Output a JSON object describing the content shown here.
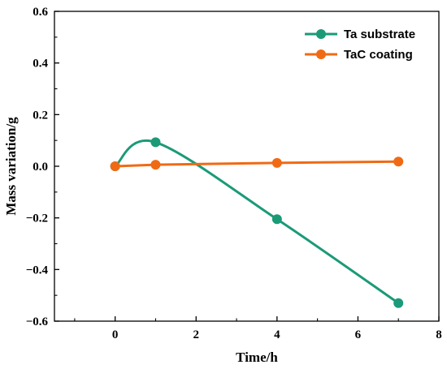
{
  "chart_data": {
    "type": "line",
    "xlabel": "Time/h",
    "ylabel": "Mass variation/g",
    "xlim": [
      -1.5,
      8
    ],
    "ylim": [
      -0.6,
      0.6
    ],
    "xticks": [
      0,
      2,
      4,
      6,
      8
    ],
    "xtick_labels": [
      "0",
      "2",
      "4",
      "6",
      "8"
    ],
    "yticks": [
      -0.6,
      -0.4,
      -0.2,
      0.0,
      0.2,
      0.4,
      0.6
    ],
    "ytick_labels": [
      "−0.6",
      "−0.4",
      "−0.2",
      "0.0",
      "0.2",
      "0.4",
      "0.6"
    ],
    "grid": false,
    "legend_position": "top-right",
    "series": [
      {
        "name": "Ta substrate",
        "color": "#1b9a78",
        "x": [
          0,
          1,
          4,
          7
        ],
        "y": [
          0.0,
          0.093,
          -0.205,
          -0.53
        ],
        "smooth": true
      },
      {
        "name": "TaC coating",
        "color": "#f06a14",
        "x": [
          0,
          1,
          4,
          7
        ],
        "y": [
          0.0,
          0.006,
          0.013,
          0.018
        ],
        "smooth": false
      }
    ]
  }
}
